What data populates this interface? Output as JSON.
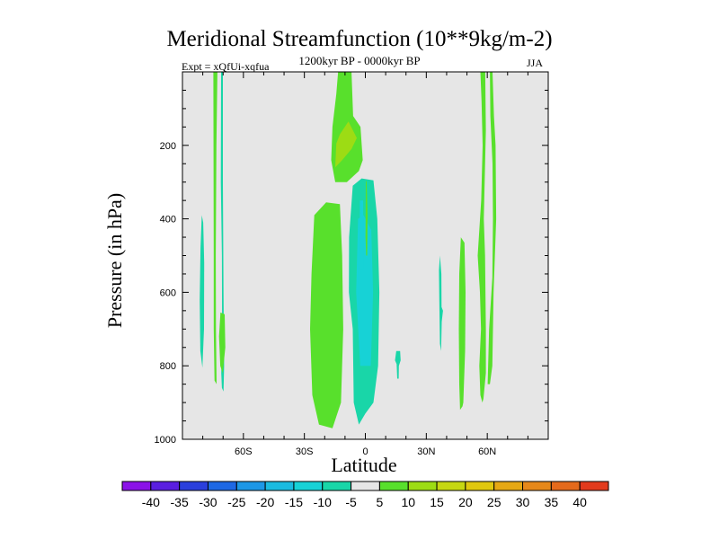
{
  "chart_data": {
    "type": "contour",
    "title": "Meridional Streamfunction (10**9kg/m-2)",
    "subtitle": "1200kyr BP - 0000kyr BP",
    "left_annotation": "Expt = xQfUi-xqfua",
    "right_annotation": "JJA",
    "xlabel": "Latitude",
    "ylabel": "Pressure (in hPa)",
    "xlim": [
      -90,
      90
    ],
    "ylim": [
      1000,
      0
    ],
    "x_ticks": [
      {
        "value": -60,
        "label": "60S"
      },
      {
        "value": -30,
        "label": "30S"
      },
      {
        "value": 0,
        "label": "0"
      },
      {
        "value": 30,
        "label": "30N"
      },
      {
        "value": 60,
        "label": "60N"
      }
    ],
    "y_ticks": [
      {
        "value": 200,
        "label": "200"
      },
      {
        "value": 400,
        "label": "400"
      },
      {
        "value": 600,
        "label": "600"
      },
      {
        "value": 800,
        "label": "800"
      },
      {
        "value": 1000,
        "label": "1000"
      }
    ],
    "background_color": "#e6e6e6",
    "colorbar": {
      "levels": [
        "-40",
        "-35",
        "-30",
        "-25",
        "-20",
        "-15",
        "-10",
        "-5",
        "5",
        "10",
        "15",
        "20",
        "25",
        "30",
        "35",
        "40"
      ],
      "colors": [
        "#8b12e8",
        "#5a1fe0",
        "#2a3fdc",
        "#1e68e4",
        "#1d97e6",
        "#1bbbe0",
        "#17d2d6",
        "#19d6a8",
        "#e6e6e6",
        "#58e02c",
        "#9ddc14",
        "#c6d712",
        "#e0c80f",
        "#e6a814",
        "#e6881a",
        "#e46a1c",
        "#e23a1c"
      ]
    },
    "regions": [
      {
        "name": "positive-5-10",
        "color": "#58e02c",
        "points": [
          [
            -13.4,
            0
          ],
          [
            -6.8,
            0
          ],
          [
            -6,
            120
          ],
          [
            -2.4,
            150
          ],
          [
            -1.3,
            240
          ],
          [
            -3.2,
            270
          ],
          [
            -9.1,
            300
          ],
          [
            -14.8,
            300
          ],
          [
            -16.8,
            240
          ],
          [
            -16.2,
            150
          ],
          [
            -14.3,
            60
          ]
        ]
      },
      {
        "name": "positive-10-15",
        "color": "#9ddc14",
        "points": [
          [
            -14.3,
            195
          ],
          [
            -12.5,
            170
          ],
          [
            -8.3,
            135
          ],
          [
            -4.2,
            180
          ],
          [
            -6.8,
            210
          ],
          [
            -11.4,
            240
          ],
          [
            -14.8,
            260
          ]
        ]
      },
      {
        "name": "positive-5-10",
        "color": "#58e02c",
        "points": [
          [
            -25.1,
            390
          ],
          [
            -19.3,
            355
          ],
          [
            -12.5,
            360
          ],
          [
            -11.4,
            500
          ],
          [
            -10.9,
            700
          ],
          [
            -12,
            900
          ],
          [
            -16.2,
            970
          ],
          [
            -22.8,
            960
          ],
          [
            -26.1,
            880
          ],
          [
            -27.2,
            700
          ],
          [
            -26.5,
            550
          ]
        ]
      },
      {
        "name": "negative-5-10",
        "color": "#19d6a8",
        "points": [
          [
            -6.2,
            310
          ],
          [
            -1.8,
            290
          ],
          [
            4,
            295
          ],
          [
            5.9,
            400
          ],
          [
            6.9,
            600
          ],
          [
            6.3,
            800
          ],
          [
            4,
            900
          ],
          [
            0,
            930
          ],
          [
            -3.2,
            960
          ],
          [
            -5.7,
            900
          ],
          [
            -6.2,
            700
          ],
          [
            -8.1,
            600
          ],
          [
            -8,
            450
          ]
        ]
      },
      {
        "name": "negative-10-15",
        "color": "#17d2d6",
        "points": [
          [
            -3.6,
            400
          ],
          [
            -0.9,
            390
          ],
          [
            2.9,
            430
          ],
          [
            3.8,
            600
          ],
          [
            2.7,
            800
          ],
          [
            -2.5,
            800
          ],
          [
            -4.5,
            600
          ]
        ]
      },
      {
        "name": "negative-10-15",
        "color": "#17d2d6",
        "points": [
          [
            -2.7,
            350
          ],
          [
            -1.1,
            350
          ],
          [
            -0.9,
            540
          ],
          [
            -2.8,
            540
          ]
        ]
      },
      {
        "name": "negative-5-10",
        "color": "#19d6a8",
        "points": [
          [
            15.2,
            760
          ],
          [
            17.1,
            760
          ],
          [
            17.4,
            785
          ],
          [
            16.5,
            800
          ],
          [
            16.4,
            835
          ],
          [
            15.7,
            835
          ],
          [
            15.4,
            795
          ],
          [
            14.6,
            785
          ]
        ]
      },
      {
        "name": "negative-5-10",
        "color": "#19d6a8",
        "points": [
          [
            -80.5,
            390
          ],
          [
            -79.8,
            410
          ],
          [
            -79.3,
            520
          ],
          [
            -79.4,
            700
          ],
          [
            -80.2,
            805
          ],
          [
            -81.2,
            760
          ],
          [
            -81.5,
            620
          ],
          [
            -81.1,
            480
          ]
        ]
      },
      {
        "name": "negative-5-10",
        "color": "#19d6a8",
        "points": [
          [
            -71,
            0
          ],
          [
            -70.1,
            0
          ],
          [
            -70.1,
            300
          ],
          [
            -69.8,
            600
          ],
          [
            -69.5,
            800
          ],
          [
            -69.8,
            870
          ],
          [
            -70.6,
            860
          ],
          [
            -70.9,
            820
          ],
          [
            -70.5,
            700
          ],
          [
            -70.6,
            500
          ],
          [
            -71.1,
            300
          ]
        ]
      },
      {
        "name": "positive-5-10",
        "color": "#58e02c",
        "points": [
          [
            -74.8,
            0
          ],
          [
            -72.8,
            0
          ],
          [
            -73.3,
            200
          ],
          [
            -73.6,
            500
          ],
          [
            -73.5,
            700
          ],
          [
            -73.2,
            850
          ],
          [
            -74.2,
            840
          ],
          [
            -74.6,
            700
          ],
          [
            -74.6,
            500
          ],
          [
            -74.7,
            250
          ]
        ]
      },
      {
        "name": "positive-5-10",
        "color": "#58e02c",
        "points": [
          [
            -71.3,
            655
          ],
          [
            -69.2,
            660
          ],
          [
            -68.9,
            750
          ],
          [
            -70.2,
            820
          ],
          [
            -71.4,
            800
          ],
          [
            -72,
            720
          ]
        ]
      },
      {
        "name": "negative-5-10",
        "color": "#19d6a8",
        "points": [
          [
            36.7,
            500
          ],
          [
            37.4,
            550
          ],
          [
            37.5,
            640
          ],
          [
            38.2,
            650
          ],
          [
            37.6,
            680
          ],
          [
            37.3,
            760
          ],
          [
            36.7,
            740
          ],
          [
            36.4,
            620
          ],
          [
            36.2,
            540
          ]
        ]
      },
      {
        "name": "positive-5-10",
        "color": "#58e02c",
        "points": [
          [
            47,
            450
          ],
          [
            48.8,
            465
          ],
          [
            49.3,
            600
          ],
          [
            49.1,
            760
          ],
          [
            48.2,
            900
          ],
          [
            47.8,
            910
          ],
          [
            46.6,
            920
          ],
          [
            46.2,
            850
          ],
          [
            46,
            700
          ],
          [
            46.2,
            550
          ]
        ]
      },
      {
        "name": "positive-5-10",
        "color": "#58e02c",
        "points": [
          [
            61.3,
            0
          ],
          [
            62.6,
            0
          ],
          [
            63.3,
            120
          ],
          [
            64.1,
            200
          ],
          [
            64.4,
            400
          ],
          [
            63.1,
            600
          ],
          [
            62.5,
            800
          ],
          [
            61.3,
            850
          ],
          [
            60.2,
            850
          ],
          [
            60.9,
            700
          ],
          [
            62.5,
            560
          ],
          [
            62.8,
            400
          ],
          [
            62.6,
            250
          ],
          [
            61.5,
            120
          ]
        ]
      },
      {
        "name": "positive-5-10",
        "color": "#58e02c",
        "points": [
          [
            56.6,
            0
          ],
          [
            59,
            0
          ],
          [
            59.3,
            160
          ],
          [
            58.3,
            400
          ],
          [
            58.9,
            500
          ],
          [
            59.3,
            700
          ],
          [
            59.3,
            820
          ],
          [
            58.1,
            890
          ],
          [
            57.6,
            900
          ],
          [
            56.6,
            880
          ],
          [
            56.1,
            800
          ],
          [
            56.9,
            700
          ],
          [
            56.4,
            600
          ],
          [
            55.3,
            500
          ],
          [
            57,
            350
          ],
          [
            57.7,
            200
          ],
          [
            57.2,
            80
          ]
        ]
      },
      {
        "name": "positive-5-10",
        "color": "#58e02c",
        "points": [
          [
            0.2,
            300
          ],
          [
            0.6,
            295
          ],
          [
            1.1,
            390
          ],
          [
            0.9,
            500
          ],
          [
            0.4,
            500
          ],
          [
            0.1,
            450
          ]
        ]
      }
    ]
  }
}
